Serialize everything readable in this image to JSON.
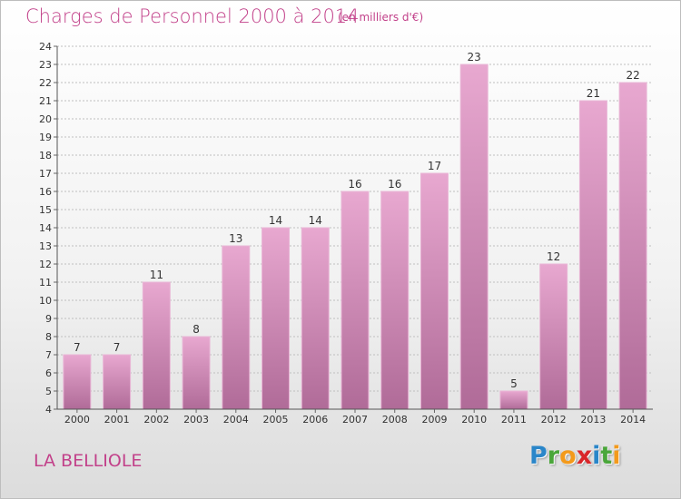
{
  "header": {
    "title": "Charges de Personnel 2000 à 2014",
    "subtitle": "(en milliers d'€)"
  },
  "footer": {
    "commune": "LA BELLIOLE",
    "logo_letters": [
      {
        "ch": "P",
        "color": "#2a86c9"
      },
      {
        "ch": "r",
        "color": "#4aa63a"
      },
      {
        "ch": "o",
        "color": "#f39a1c"
      },
      {
        "ch": "x",
        "color": "#d9262a"
      },
      {
        "ch": "i",
        "color": "#2a86c9"
      },
      {
        "ch": "t",
        "color": "#4aa63a"
      },
      {
        "ch": "i",
        "color": "#f39a1c"
      }
    ]
  },
  "colors": {
    "bar_light": "#e8a8d0",
    "bar_dark": "#b06b98",
    "title": "#c2418a",
    "grid": "#bfbfbf"
  },
  "chart_data": {
    "type": "bar",
    "title": "Charges de Personnel 2000 à 2014",
    "subtitle": "(en milliers d'€)",
    "xlabel": "",
    "ylabel": "",
    "categories": [
      "2000",
      "2001",
      "2002",
      "2003",
      "2004",
      "2005",
      "2006",
      "2007",
      "2008",
      "2009",
      "2010",
      "2011",
      "2012",
      "2013",
      "2014"
    ],
    "values": [
      7,
      7,
      11,
      8,
      13,
      14,
      14,
      16,
      16,
      17,
      23,
      5,
      12,
      21,
      22
    ],
    "ylim": [
      4,
      24
    ],
    "yticks": [
      4,
      5,
      6,
      7,
      8,
      9,
      10,
      11,
      12,
      13,
      14,
      15,
      16,
      17,
      18,
      19,
      20,
      21,
      22,
      23,
      24
    ],
    "grid": true,
    "data_labels": true
  }
}
